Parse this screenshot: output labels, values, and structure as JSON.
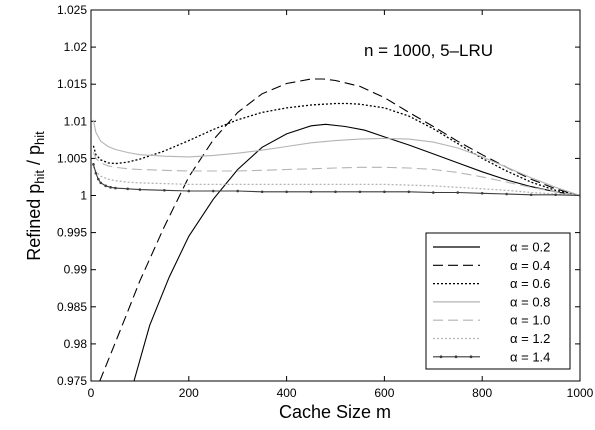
{
  "chart_data": {
    "type": "line",
    "annotation": "n = 1000, 5–LRU",
    "xlabel": "Cache Size m",
    "ylabel": {
      "main": "Refined p",
      "sub1": "hit",
      "mid": " / p",
      "sub2": "hit"
    },
    "xlim": [
      0,
      1000
    ],
    "ylim": [
      0.975,
      1.025
    ],
    "xticks": [
      0,
      200,
      400,
      600,
      800,
      1000
    ],
    "yticks": [
      0.975,
      0.98,
      0.985,
      0.99,
      0.995,
      1,
      1.005,
      1.01,
      1.015,
      1.02,
      1.025
    ],
    "ytick_labels": [
      "0.975",
      "0.98",
      "0.985",
      "0.99",
      "0.995",
      "1",
      "1.005",
      "1.01",
      "1.015",
      "1.02",
      "1.025"
    ],
    "legend_position": "bottom-right",
    "grid": false,
    "series": [
      {
        "name": "α = 0.2",
        "color": "#000000",
        "dash": "solid",
        "x": [
          88,
          120,
          160,
          200,
          250,
          300,
          350,
          400,
          450,
          480,
          520,
          560,
          600,
          650,
          700,
          750,
          800,
          850,
          900,
          950,
          1000
        ],
        "y": [
          0.975,
          0.9825,
          0.989,
          0.9945,
          0.9995,
          1.0035,
          1.0065,
          1.0083,
          1.0094,
          1.0096,
          1.0093,
          1.0088,
          1.0079,
          1.0068,
          1.0056,
          1.0044,
          1.0032,
          1.0021,
          1.0012,
          1.0005,
          1.0
        ]
      },
      {
        "name": "α = 0.4",
        "color": "#000000",
        "dash": "long",
        "x": [
          18,
          40,
          70,
          100,
          150,
          200,
          250,
          300,
          350,
          400,
          450,
          475,
          500,
          550,
          600,
          650,
          700,
          750,
          800,
          850,
          900,
          950,
          1000
        ],
        "y": [
          0.975,
          0.9786,
          0.9835,
          0.9885,
          0.9958,
          1.0025,
          1.0075,
          1.0112,
          1.0137,
          1.0151,
          1.0157,
          1.0157,
          1.0155,
          1.0147,
          1.0132,
          1.0112,
          1.0093,
          1.0073,
          1.0055,
          1.0038,
          1.0022,
          1.0009,
          1.0
        ]
      },
      {
        "name": "α = 0.6",
        "color": "#000000",
        "dash": "dotted",
        "x": [
          5,
          10,
          20,
          35,
          50,
          75,
          100,
          150,
          200,
          250,
          300,
          350,
          400,
          450,
          500,
          525,
          550,
          600,
          650,
          700,
          750,
          800,
          850,
          900,
          950,
          1000
        ],
        "y": [
          1.0067,
          1.0055,
          1.0048,
          1.0044,
          1.0043,
          1.0045,
          1.0049,
          1.006,
          1.0074,
          1.0089,
          1.0102,
          1.0112,
          1.0118,
          1.0122,
          1.0124,
          1.0124,
          1.0123,
          1.0118,
          1.0107,
          1.009,
          1.007,
          1.005,
          1.0033,
          1.0018,
          1.0007,
          1.0
        ]
      },
      {
        "name": "α = 0.8",
        "color": "#b4b4b4",
        "dash": "solid",
        "x": [
          5,
          10,
          20,
          35,
          50,
          75,
          100,
          150,
          200,
          250,
          300,
          350,
          400,
          450,
          500,
          550,
          600,
          650,
          700,
          750,
          800,
          850,
          900,
          950,
          1000
        ],
        "y": [
          1.0102,
          1.0085,
          1.0073,
          1.0066,
          1.0062,
          1.0058,
          1.0055,
          1.0053,
          1.0052,
          1.0054,
          1.0057,
          1.0061,
          1.0066,
          1.0071,
          1.0074,
          1.0076,
          1.0077,
          1.0076,
          1.0072,
          1.0064,
          1.0052,
          1.0038,
          1.0024,
          1.0011,
          1.0
        ]
      },
      {
        "name": "α = 1.0",
        "color": "#b4b4b4",
        "dash": "long",
        "x": [
          5,
          10,
          20,
          35,
          50,
          75,
          100,
          150,
          200,
          250,
          300,
          350,
          400,
          450,
          500,
          550,
          600,
          650,
          700,
          750,
          800,
          850,
          900,
          950,
          1000
        ],
        "y": [
          1.0058,
          1.005,
          1.0044,
          1.004,
          1.0038,
          1.0036,
          1.0035,
          1.0034,
          1.0033,
          1.0033,
          1.0033,
          1.0034,
          1.0035,
          1.0036,
          1.0037,
          1.0038,
          1.0038,
          1.0037,
          1.0035,
          1.0031,
          1.0025,
          1.0018,
          1.0011,
          1.0005,
          1.0
        ]
      },
      {
        "name": "α = 1.2",
        "color": "#b4b4b4",
        "dash": "dotted",
        "x": [
          5,
          10,
          20,
          35,
          50,
          75,
          100,
          150,
          200,
          250,
          300,
          350,
          400,
          450,
          500,
          550,
          600,
          650,
          700,
          750,
          800,
          850,
          900,
          950,
          1000
        ],
        "y": [
          1.0039,
          1.0032,
          1.0026,
          1.0022,
          1.002,
          1.0018,
          1.0017,
          1.0016,
          1.0015,
          1.0015,
          1.0015,
          1.0015,
          1.0015,
          1.0015,
          1.0015,
          1.0015,
          1.0015,
          1.0014,
          1.0013,
          1.0011,
          1.0009,
          1.0007,
          1.0004,
          1.0002,
          1.0
        ]
      },
      {
        "name": "α = 1.4",
        "color": "#3c3c3c",
        "dash": "solid-marker",
        "x": [
          5,
          10,
          15,
          20,
          30,
          40,
          50,
          75,
          100,
          150,
          200,
          250,
          300,
          350,
          400,
          450,
          500,
          550,
          600,
          650,
          700,
          750,
          800,
          850,
          900,
          950,
          1000
        ],
        "y": [
          1.0042,
          1.003,
          1.0022,
          1.0017,
          1.0013,
          1.0011,
          1.001,
          1.0009,
          1.0008,
          1.0007,
          1.0006,
          1.0006,
          1.0006,
          1.0005,
          1.0005,
          1.0005,
          1.0005,
          1.0005,
          1.0005,
          1.0005,
          1.0004,
          1.0004,
          1.0003,
          1.0002,
          1.0001,
          1.0001,
          1.0
        ]
      }
    ]
  }
}
